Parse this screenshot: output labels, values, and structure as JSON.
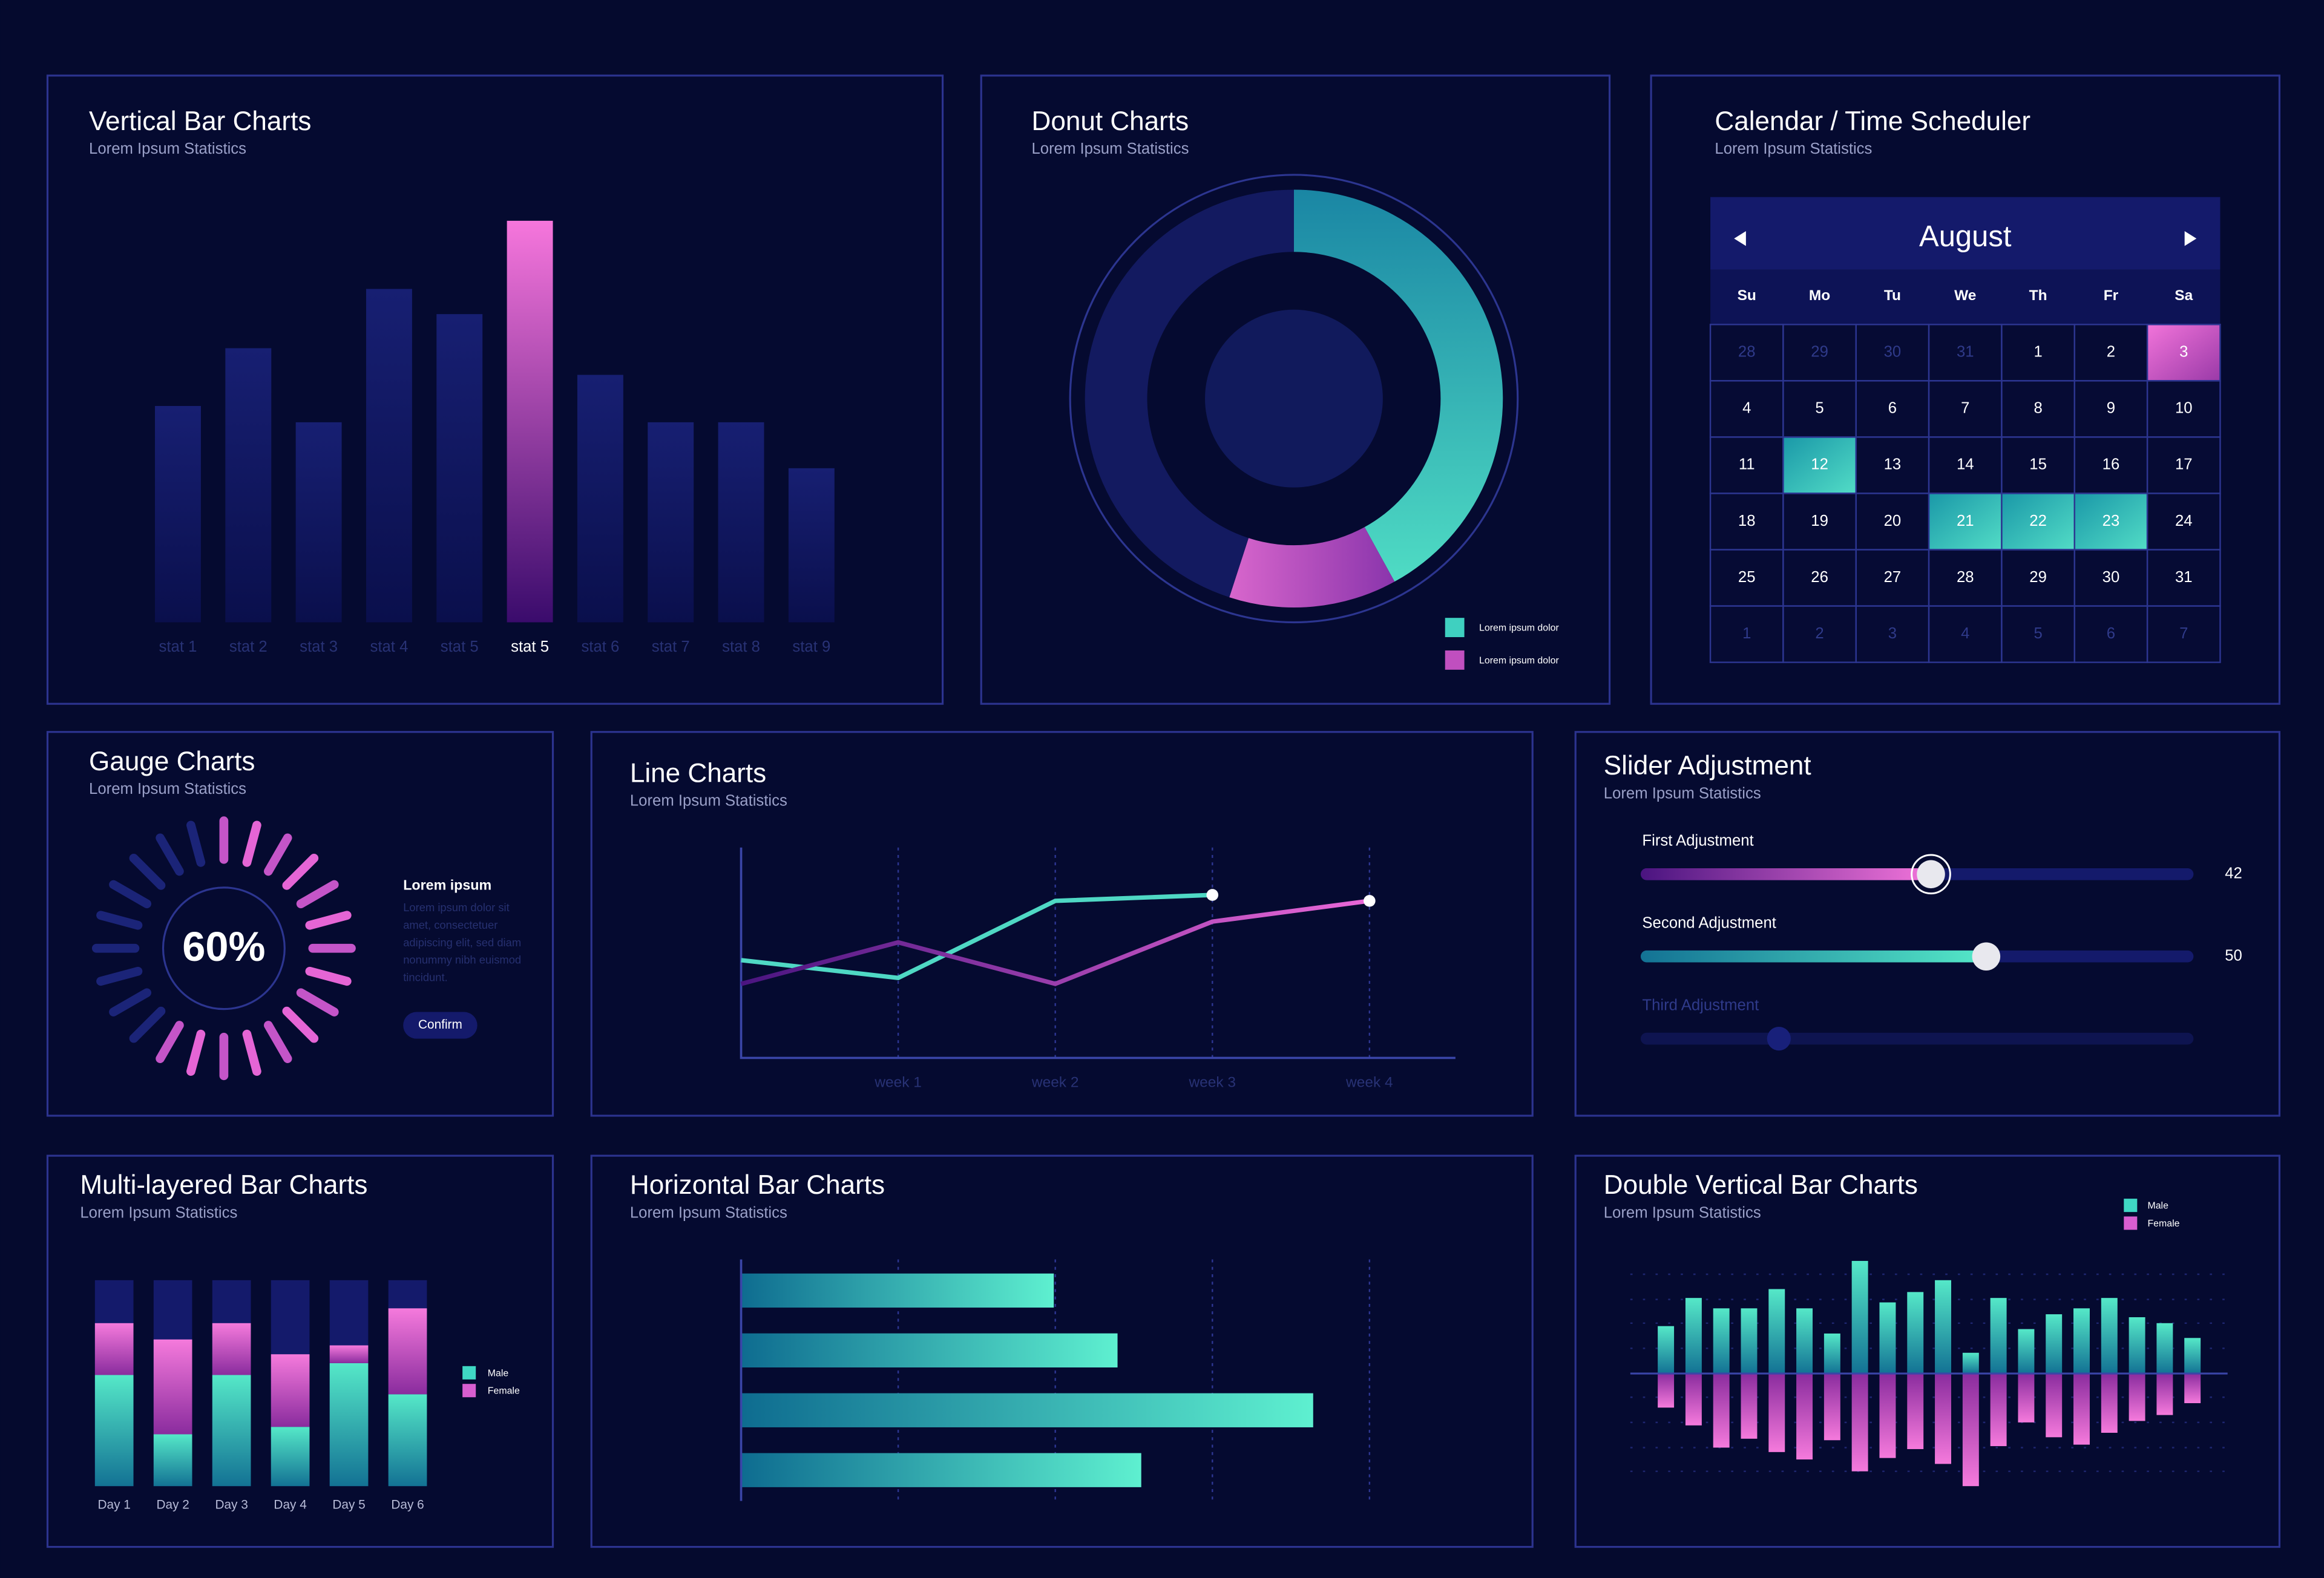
{
  "chart_data": [
    {
      "type": "bar",
      "title": "Vertical Bar Charts",
      "subtitle": "Lorem Ipsum Statistics",
      "categories": [
        "stat 1",
        "stat 2",
        "stat 3",
        "stat 4",
        "stat 5",
        "stat 5",
        "stat 6",
        "stat 7",
        "stat 8",
        "stat 9"
      ],
      "values": [
        146,
        185,
        135,
        225,
        208,
        271,
        167,
        135,
        135,
        104
      ],
      "ylim": [
        0,
        271
      ],
      "highlight": 5,
      "color": "#151c6a",
      "highlight_color": "#f06ad8"
    },
    {
      "type": "donut",
      "title": "Donut Charts",
      "subtitle": "Lorem Ipsum Statistics",
      "categories": [
        "Lorem ipsum dolor",
        "Lorem ipsum dolor",
        null
      ],
      "values": [
        42,
        13,
        45
      ],
      "colors": [
        "#3fd0c0",
        "#c04fbf",
        "#131a60"
      ]
    },
    {
      "type": "gauge",
      "title": "Gauge Charts",
      "subtitle": "Lorem Ipsum Statistics",
      "values": [
        60
      ],
      "value_labels": [
        "60%"
      ],
      "ylim": [
        0,
        100
      ],
      "heading": "Lorem ipsum",
      "body_lines": [
        "Lorem ipsum dolor sit",
        "amet, consectetuer",
        "adipiscing elit, sed diam",
        "nonummy nibh euismod",
        "tincidunt."
      ],
      "button": "Confirm"
    },
    {
      "type": "line",
      "title": "Line Charts",
      "subtitle": "Lorem Ipsum Statistics",
      "categories": [
        null,
        "week 1",
        "week 2",
        "week 3",
        "week 4"
      ],
      "ylim": [
        0,
        142
      ],
      "series": [
        {
          "color": "#4fd8c4",
          "values": [
            66,
            54,
            106,
            110,
            null
          ]
        },
        {
          "color": "#d85ed0",
          "values": [
            50,
            78,
            50,
            92,
            106
          ]
        }
      ]
    },
    {
      "type": "stacked_bar",
      "title": "Multi-layered Bar Charts",
      "subtitle": "Lorem Ipsum Statistics",
      "categories": [
        "Day 1",
        "Day 2",
        "Day 3",
        "Day 4",
        "Day 5",
        "Day 6"
      ],
      "ylim": [
        0,
        139
      ],
      "series": [
        {
          "name": "Male",
          "color": "#3fd8c4",
          "values": [
            75,
            35,
            75,
            40,
            83,
            62
          ]
        },
        {
          "name": "Female",
          "color": "#d85ed0",
          "values": [
            35,
            64,
            35,
            49,
            12,
            58
          ]
        }
      ]
    },
    {
      "type": "hbar",
      "title": "Horizontal Bar Charts",
      "subtitle": "Lorem Ipsum Statistics",
      "values": [
        211,
        254,
        386,
        270
      ],
      "xlim": [
        0,
        424
      ],
      "xticks": [
        106,
        212,
        318,
        424
      ],
      "grid": true,
      "color": "#3fd8c4"
    },
    {
      "type": "double_bar",
      "title": "Double Vertical Bar Charts",
      "subtitle": "Lorem Ipsum Statistics",
      "ylim": [
        -80,
        80
      ],
      "series": [
        {
          "name": "Male",
          "color": "#3fd8c4",
          "values": [
            32,
            51,
            44,
            44,
            57,
            44,
            27,
            76,
            48,
            55,
            63,
            14,
            51,
            30,
            40,
            44,
            51,
            38,
            34,
            24
          ]
        },
        {
          "name": "Female",
          "color": "#d85ed0",
          "values": [
            -23,
            -35,
            -50,
            -44,
            -53,
            -58,
            -45,
            -66,
            -57,
            -51,
            -61,
            -76,
            -49,
            -33,
            -43,
            -48,
            -40,
            -32,
            -28,
            -20
          ]
        }
      ]
    }
  ],
  "calendar": {
    "title": "Calendar / Time Scheduler",
    "subtitle": "Lorem Ipsum Statistics",
    "month": "August",
    "weekdays": [
      "Su",
      "Mo",
      "Tu",
      "We",
      "Th",
      "Fr",
      "Sa"
    ],
    "weeks": [
      [
        28,
        29,
        30,
        31,
        1,
        2,
        3
      ],
      [
        4,
        5,
        6,
        7,
        8,
        9,
        10
      ],
      [
        11,
        12,
        13,
        14,
        15,
        16,
        17
      ],
      [
        18,
        19,
        20,
        21,
        22,
        23,
        24
      ],
      [
        25,
        26,
        27,
        28,
        29,
        30,
        31
      ],
      [
        1,
        2,
        3,
        4,
        5,
        6,
        7
      ]
    ]
  },
  "sliders": {
    "title": "Slider Adjustment",
    "subtitle": "Lorem Ipsum Statistics",
    "xlim": [
      0,
      80
    ],
    "items": [
      {
        "label": "First Adjustment",
        "value": 42
      },
      {
        "label": "Second Adjustment",
        "value": 50
      },
      {
        "label": "Third Adjustment",
        "value": 20
      }
    ]
  }
}
